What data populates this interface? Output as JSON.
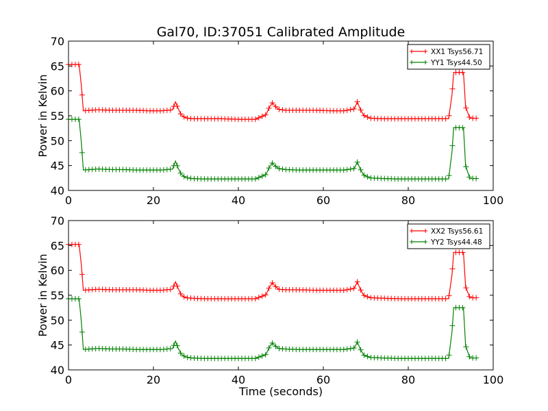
{
  "figure_title": "Gal70, ID:37051 Calibrated Amplitude",
  "chart_data": [
    {
      "type": "line",
      "title": "Gal70, ID:37051 Calibrated Amplitude",
      "xlabel": "",
      "ylabel": "Power in Kelvin",
      "xlim": [
        0,
        100
      ],
      "ylim": [
        40,
        70
      ],
      "xticks": [
        0,
        20,
        40,
        60,
        80,
        100
      ],
      "yticks": [
        40,
        45,
        50,
        55,
        60,
        65,
        70
      ],
      "legend_position": "top-right",
      "marker": "+",
      "series": [
        {
          "name": "XX1 Tsys56.71",
          "color": "#ff0000",
          "x": [
            0,
            0.5,
            1,
            1.5,
            2,
            2.5,
            3,
            3.5,
            5,
            7,
            10,
            13,
            16,
            19,
            22,
            24.5,
            25.2,
            25.8,
            26.5,
            27.5,
            29,
            32,
            36,
            40,
            44,
            46.5,
            47.3,
            48,
            48.7,
            49.5,
            51,
            54,
            58,
            62,
            65,
            67.3,
            68,
            68.7,
            69.5,
            71,
            74,
            78,
            82,
            86,
            89.5,
            90.3,
            90.7,
            91.5,
            92.5,
            93,
            93.5,
            94.5,
            96
          ],
          "y": [
            65.3,
            65.3,
            65.3,
            65.3,
            65.3,
            65.3,
            61.3,
            56,
            56.1,
            56.2,
            56.1,
            56.1,
            56.1,
            56,
            56,
            56.2,
            57.8,
            56.5,
            55.2,
            54.6,
            54.4,
            54.4,
            54.4,
            54.3,
            54.3,
            55.2,
            56.7,
            57.6,
            56.9,
            56.3,
            56.1,
            56.1,
            56.1,
            56,
            56,
            56.4,
            57.8,
            56.3,
            55.1,
            54.5,
            54.4,
            54.4,
            54.4,
            54.4,
            54.4,
            59.3,
            63.7,
            63.7,
            63.7,
            63.7,
            56.8,
            54.5,
            54.5
          ]
        },
        {
          "name": "YY1 Tsys44.50",
          "color": "#008000",
          "x": [
            0,
            0.5,
            1,
            1.5,
            2,
            2.5,
            3,
            3.5,
            5,
            7,
            10,
            13,
            16,
            19,
            22,
            24.5,
            25.2,
            25.8,
            26.5,
            27.5,
            29,
            32,
            36,
            40,
            44,
            46.5,
            47.3,
            48,
            48.7,
            49.5,
            51,
            54,
            58,
            62,
            65,
            67.3,
            68,
            68.7,
            69.5,
            71,
            74,
            78,
            82,
            86,
            89.5,
            90.3,
            90.7,
            91.5,
            92.5,
            93,
            93.5,
            94.5,
            96
          ],
          "y": [
            54.3,
            54.3,
            54.3,
            54.3,
            54.3,
            54.3,
            49.9,
            44.1,
            44.2,
            44.3,
            44.2,
            44.2,
            44.1,
            44.1,
            44.1,
            44.3,
            45.9,
            44.5,
            43.3,
            42.6,
            42.4,
            42.3,
            42.3,
            42.3,
            42.3,
            43.2,
            44.7,
            45.5,
            44.9,
            44.4,
            44.2,
            44.1,
            44.1,
            44.1,
            44.1,
            44.4,
            45.7,
            44.3,
            43.1,
            42.5,
            42.4,
            42.3,
            42.3,
            42.3,
            42.3,
            47.8,
            52.6,
            52.6,
            52.6,
            52.6,
            45,
            42.4,
            42.4
          ]
        }
      ]
    },
    {
      "type": "line",
      "title": "",
      "xlabel": "Time (seconds)",
      "ylabel": "Power in Kelvin",
      "xlim": [
        0,
        100
      ],
      "ylim": [
        40,
        70
      ],
      "xticks": [
        0,
        20,
        40,
        60,
        80,
        100
      ],
      "yticks": [
        40,
        45,
        50,
        55,
        60,
        65,
        70
      ],
      "legend_position": "top-right",
      "marker": "+",
      "series": [
        {
          "name": "XX2 Tsys56.61",
          "color": "#ff0000",
          "x": [
            0,
            0.5,
            1,
            1.5,
            2,
            2.5,
            3,
            3.5,
            5,
            7,
            10,
            13,
            16,
            19,
            22,
            24.5,
            25.2,
            25.8,
            26.5,
            27.5,
            29,
            32,
            36,
            40,
            44,
            46.5,
            47.3,
            48,
            48.7,
            49.5,
            51,
            54,
            58,
            62,
            65,
            67.3,
            68,
            68.7,
            69.5,
            71,
            74,
            78,
            82,
            86,
            89.5,
            90.3,
            90.7,
            91.5,
            92.5,
            93,
            93.5,
            94.5,
            96
          ],
          "y": [
            65.2,
            65.2,
            65.2,
            65.2,
            65.2,
            65.2,
            61.3,
            56,
            56.1,
            56.2,
            56.1,
            56.1,
            56.1,
            56,
            56,
            56.2,
            57.7,
            56.4,
            55.1,
            54.5,
            54.4,
            54.3,
            54.3,
            54.3,
            54.3,
            55.1,
            56.6,
            57.5,
            56.8,
            56.2,
            56.1,
            56.1,
            56,
            56,
            56,
            56.4,
            57.7,
            56.2,
            55,
            54.5,
            54.4,
            54.3,
            54.3,
            54.3,
            54.3,
            59.2,
            63.6,
            63.6,
            63.6,
            63.6,
            56.7,
            54.5,
            54.5
          ]
        },
        {
          "name": "YY2 Tsys44.48",
          "color": "#008000",
          "x": [
            0,
            0.5,
            1,
            1.5,
            2,
            2.5,
            3,
            3.5,
            5,
            7,
            10,
            13,
            16,
            19,
            22,
            24.5,
            25.2,
            25.8,
            26.5,
            27.5,
            29,
            32,
            36,
            40,
            44,
            46.5,
            47.3,
            48,
            48.7,
            49.5,
            51,
            54,
            58,
            62,
            65,
            67.3,
            68,
            68.7,
            69.5,
            71,
            74,
            78,
            82,
            86,
            89.5,
            90.3,
            90.7,
            91.5,
            92.5,
            93,
            93.5,
            94.5,
            96
          ],
          "y": [
            54.3,
            54.3,
            54.3,
            54.3,
            54.3,
            54.3,
            49.9,
            44.1,
            44.2,
            44.3,
            44.2,
            44.2,
            44.1,
            44.1,
            44.1,
            44.3,
            45.8,
            44.4,
            43.2,
            42.6,
            42.4,
            42.3,
            42.3,
            42.3,
            42.3,
            43.1,
            44.6,
            45.4,
            44.8,
            44.3,
            44.2,
            44.1,
            44.1,
            44.1,
            44.1,
            44.4,
            45.6,
            44.2,
            43,
            42.5,
            42.4,
            42.3,
            42.3,
            42.3,
            42.3,
            47.7,
            52.5,
            52.5,
            52.5,
            52.5,
            44.9,
            42.4,
            42.4
          ]
        }
      ]
    }
  ]
}
